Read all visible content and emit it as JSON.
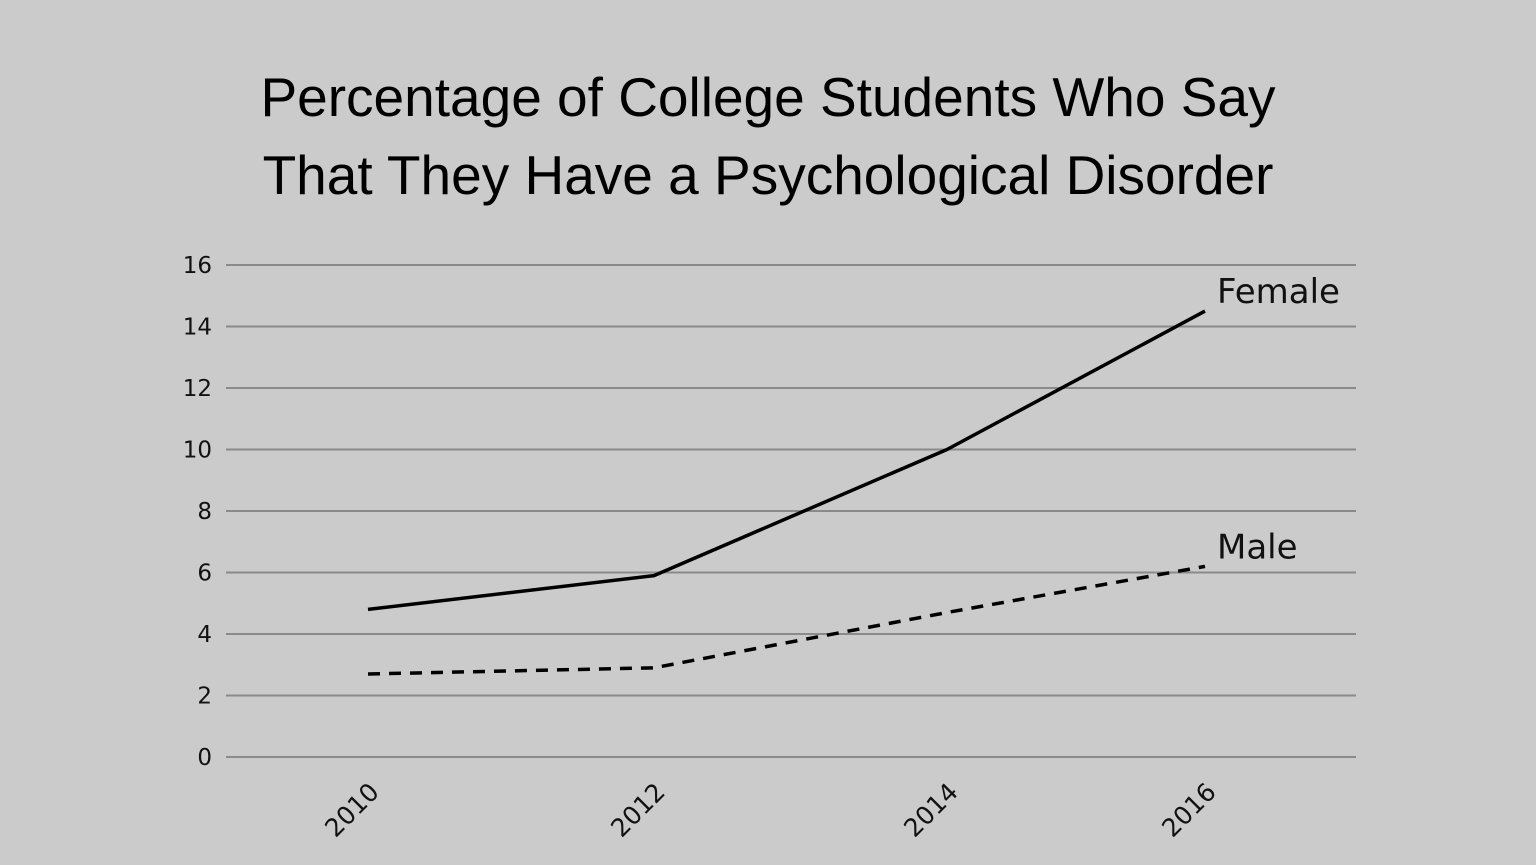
{
  "chart_data": {
    "type": "line",
    "title_lines": [
      "Percentage of College Students Who Say",
      "That They Have a Psychological Disorder"
    ],
    "xlabel": "",
    "ylabel": "",
    "x": [
      "2010",
      "2012",
      "2014",
      "2016"
    ],
    "yticks": [
      "0",
      "2",
      "4",
      "6",
      "8",
      "10",
      "12",
      "14",
      "16"
    ],
    "ylim": [
      0,
      16
    ],
    "grid": true,
    "series": [
      {
        "name": "Female",
        "style": "solid",
        "values": [
          4.8,
          5.9,
          10.0,
          14.5
        ]
      },
      {
        "name": "Male",
        "style": "dashed",
        "values": [
          2.7,
          2.9,
          4.7,
          6.2
        ]
      }
    ],
    "colors": {
      "background": "#cbcbcb",
      "grid": "#8a8a8a",
      "line": "#000000"
    }
  }
}
